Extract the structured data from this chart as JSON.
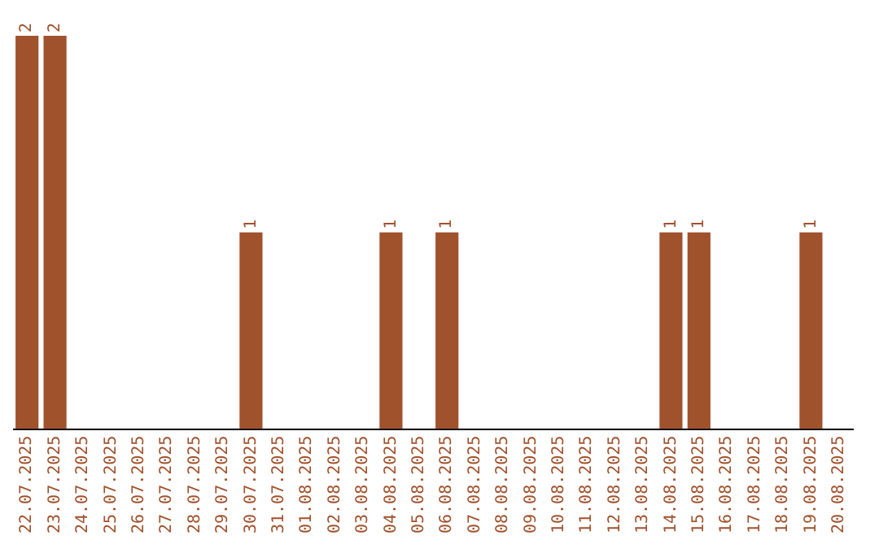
{
  "chart_data": {
    "type": "bar",
    "categories": [
      "22.07.2025",
      "23.07.2025",
      "24.07.2025",
      "25.07.2025",
      "26.07.2025",
      "27.07.2025",
      "28.07.2025",
      "29.07.2025",
      "30.07.2025",
      "31.07.2025",
      "01.08.2025",
      "02.08.2025",
      "03.08.2025",
      "04.08.2025",
      "05.08.2025",
      "06.08.2025",
      "07.08.2025",
      "08.08.2025",
      "09.08.2025",
      "10.08.2025",
      "11.08.2025",
      "12.08.2025",
      "13.08.2025",
      "14.08.2025",
      "15.08.2025",
      "16.08.2025",
      "17.08.2025",
      "18.08.2025",
      "19.08.2025",
      "20.08.2025"
    ],
    "values": [
      2,
      2,
      0,
      0,
      0,
      0,
      0,
      0,
      1,
      0,
      0,
      0,
      0,
      1,
      0,
      1,
      0,
      0,
      0,
      0,
      0,
      0,
      0,
      1,
      1,
      0,
      0,
      0,
      1,
      0
    ],
    "value_labels": [
      "2",
      "2",
      null,
      null,
      null,
      null,
      null,
      null,
      "1",
      null,
      null,
      null,
      null,
      "1",
      null,
      "1",
      null,
      null,
      null,
      null,
      null,
      null,
      null,
      "1",
      "1",
      null,
      null,
      null,
      "1",
      null
    ],
    "color": "#a0522d",
    "ylim": [
      0,
      2
    ],
    "grid": false,
    "legend": false
  }
}
